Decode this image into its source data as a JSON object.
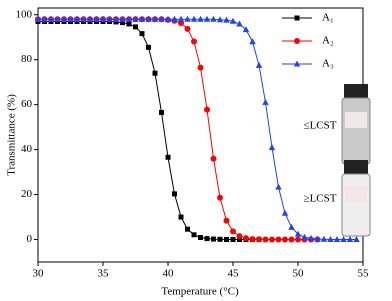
{
  "chart_data": {
    "type": "line",
    "xlabel": "Temperature (°C)",
    "ylabel": "Transmittance (%)",
    "x": [
      30,
      30.5,
      31,
      31.5,
      32,
      32.5,
      33,
      33.5,
      34,
      34.5,
      35,
      35.5,
      36,
      36.5,
      37,
      37.5,
      38,
      38.5,
      39,
      39.5,
      40,
      40.5,
      41,
      41.5,
      42,
      42.5,
      43,
      43.5,
      44,
      44.5,
      45,
      45.5,
      46,
      46.5,
      47,
      47.5,
      48,
      48.5,
      49,
      49.5,
      50,
      50.5,
      51,
      51.5,
      52,
      52.5,
      53,
      53.5,
      54,
      54.5
    ],
    "series": [
      {
        "name": "A₁",
        "color": "#000000",
        "marker": "square",
        "values": [
          97,
          97,
          97,
          97,
          97,
          97,
          97,
          97,
          97,
          97,
          97,
          97,
          96.8,
          96.5,
          95.9,
          94.6,
          91.6,
          85.5,
          74.0,
          56.5,
          36.6,
          20.3,
          10.0,
          4.6,
          2.1,
          0.9,
          0.4,
          0.2,
          0.1,
          0,
          0,
          0,
          0,
          0,
          0,
          null,
          null,
          null,
          null,
          null,
          null,
          null,
          null,
          null,
          null,
          null,
          null,
          null,
          null,
          null
        ]
      },
      {
        "name": "A₂",
        "color": "#ff0000",
        "marker": "circle",
        "values": [
          98,
          98,
          98,
          98,
          98,
          98,
          98,
          98,
          98,
          98,
          98,
          98,
          98,
          98,
          98,
          98,
          98,
          98,
          98,
          98,
          97.7,
          97.3,
          96.3,
          93.7,
          88.1,
          76.5,
          57.8,
          36.0,
          18.6,
          8.4,
          3.6,
          1.5,
          0.6,
          0.2,
          0.1,
          0,
          0,
          0,
          0,
          0,
          0,
          0,
          0,
          0,
          null,
          null,
          null,
          null,
          null,
          null
        ]
      },
      {
        "name": "A₃",
        "color": "#2040ff",
        "marker": "triangle",
        "values": [
          98,
          98,
          98,
          98,
          98,
          98,
          98,
          98,
          98,
          98,
          98,
          98,
          98,
          98,
          98,
          98,
          98,
          98,
          98,
          98,
          98,
          98,
          98,
          98,
          98,
          98,
          98,
          98,
          97.8,
          97.6,
          97.1,
          95.9,
          93.4,
          88.0,
          77.5,
          61.0,
          40.9,
          23.3,
          11.7,
          5.4,
          2.4,
          1.0,
          0.5,
          0.2,
          0.1,
          0,
          0,
          0,
          0,
          0
        ]
      }
    ],
    "xlim": [
      30,
      55
    ],
    "xticks": [
      30,
      35,
      40,
      45,
      50,
      55
    ],
    "ylim": [
      -10,
      103
    ],
    "yticks": [
      0,
      20,
      40,
      60,
      80,
      100
    ],
    "legend": "top-right",
    "annotations": [
      "≤LCST",
      "≥LCST"
    ]
  }
}
